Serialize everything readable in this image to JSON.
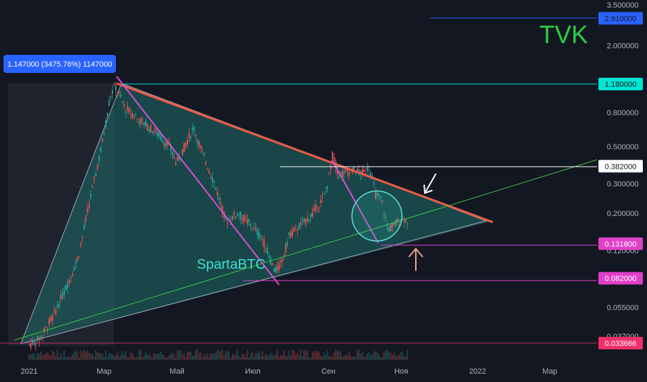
{
  "chart_data": {
    "type": "candlestick",
    "symbol": "TVK",
    "watermark": "SpartaBTC",
    "y_scale": "log",
    "y_range": [
      0.027,
      3.6
    ],
    "x_ticks": [
      "2021",
      "Мар",
      "Май",
      "Июл",
      "Сен",
      "Ноя",
      "2022",
      "Мар"
    ],
    "y_ticks": [
      "3.500000",
      "2.000000",
      "0.800000",
      "0.500000",
      "0.300000",
      "0.200000",
      "0.120000",
      "0.055000",
      "0.037000"
    ],
    "y_tick_values": [
      3.5,
      2.0,
      0.8,
      0.5,
      0.3,
      0.2,
      0.12,
      0.055,
      0.037
    ],
    "price_levels": [
      {
        "label": "2.910000",
        "value": 2.91,
        "color": "#2962ff",
        "text_color": "#131722"
      },
      {
        "label": "1.180000",
        "value": 1.18,
        "color": "#00e5d4",
        "text_color": "#131722"
      },
      {
        "label": "0.382000",
        "value": 0.382,
        "color": "#ffffff",
        "text_color": "#131722"
      },
      {
        "label": "0.131800",
        "value": 0.1318,
        "color": "#e040c8",
        "text_color": "#ffffff"
      },
      {
        "label": "0.082000",
        "value": 0.082,
        "color": "#e040c8",
        "text_color": "#ffffff"
      },
      {
        "label": "0.033666",
        "value": 0.033666,
        "color": "#f0306a",
        "text_color": "#ffffff"
      }
    ],
    "measure_label": "1.147000 (3475.76%) 1147000",
    "price_path": [
      [
        "2021-01-01",
        0.033
      ],
      [
        "2021-01-10",
        0.036
      ],
      [
        "2021-01-20",
        0.048
      ],
      [
        "2021-02-01",
        0.075
      ],
      [
        "2021-02-10",
        0.11
      ],
      [
        "2021-02-20",
        0.25
      ],
      [
        "2021-03-01",
        0.5
      ],
      [
        "2021-03-08",
        1.0
      ],
      [
        "2021-03-12",
        1.15
      ],
      [
        "2021-03-20",
        0.85
      ],
      [
        "2021-04-01",
        0.72
      ],
      [
        "2021-04-15",
        0.6
      ],
      [
        "2021-04-25",
        0.5
      ],
      [
        "2021-05-01",
        0.4
      ],
      [
        "2021-05-10",
        0.55
      ],
      [
        "2021-05-15",
        0.65
      ],
      [
        "2021-05-20",
        0.5
      ],
      [
        "2021-06-01",
        0.3
      ],
      [
        "2021-06-10",
        0.18
      ],
      [
        "2021-06-20",
        0.2
      ],
      [
        "2021-07-01",
        0.17
      ],
      [
        "2021-07-10",
        0.14
      ],
      [
        "2021-07-20",
        0.09
      ],
      [
        "2021-07-25",
        0.1
      ],
      [
        "2021-08-01",
        0.15
      ],
      [
        "2021-08-10",
        0.17
      ],
      [
        "2021-08-20",
        0.2
      ],
      [
        "2021-08-30",
        0.26
      ],
      [
        "2021-09-01",
        0.3
      ],
      [
        "2021-09-05",
        0.45
      ],
      [
        "2021-09-10",
        0.34
      ],
      [
        "2021-09-20",
        0.36
      ],
      [
        "2021-09-30",
        0.35
      ],
      [
        "2021-10-05",
        0.38
      ],
      [
        "2021-10-10",
        0.26
      ],
      [
        "2021-10-15",
        0.24
      ],
      [
        "2021-10-20",
        0.16
      ],
      [
        "2021-10-25",
        0.17
      ],
      [
        "2021-11-01",
        0.19
      ],
      [
        "2021-11-05",
        0.18
      ]
    ]
  }
}
